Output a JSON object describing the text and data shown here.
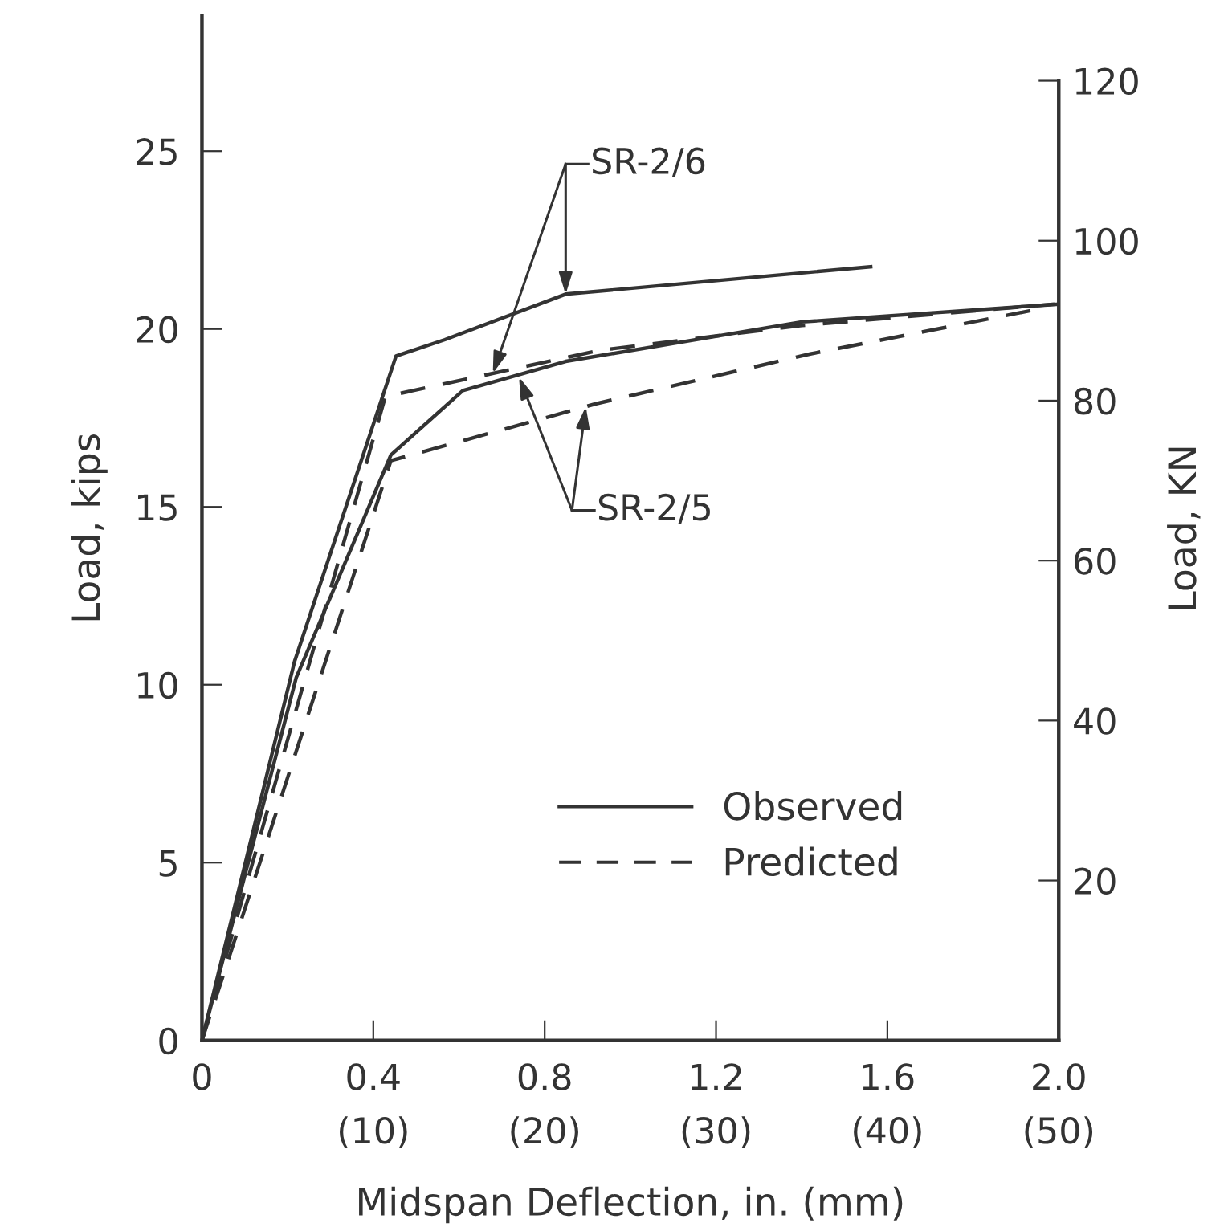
{
  "chart_data": {
    "type": "line",
    "xlabel": "Midspan Deflection, in. (mm)",
    "ylabel": "Load, kips",
    "y2label": "Load, KN",
    "xlim": [
      0,
      2.0
    ],
    "xticks": [
      0,
      0.4,
      0.8,
      1.2,
      1.6,
      {
        "value": 2.0,
        "label": "2.0"
      }
    ],
    "x2lim": [
      0,
      50
    ],
    "x2ticks": [
      {
        "value": 10,
        "label": "(10)"
      },
      {
        "value": 20,
        "label": "(20)"
      },
      {
        "value": 30,
        "label": "(30)"
      },
      {
        "value": 40,
        "label": "(40)"
      },
      {
        "value": 50,
        "label": "(50)"
      }
    ],
    "ylim": [
      0,
      28.8
    ],
    "yticks": [
      0,
      5,
      10,
      15,
      20,
      25
    ],
    "y2lim": [
      0,
      128.1
    ],
    "y2ticks": [
      20,
      40,
      60,
      80,
      100,
      120
    ],
    "series": [
      {
        "name": "Observed",
        "color": "#333333",
        "line_style": "solid",
        "x": [
          0,
          0.216,
          0.453,
          0.567,
          0.849,
          1.561
        ],
        "values": [
          0,
          10.65,
          19.24,
          19.7,
          20.98,
          21.75
        ]
      },
      {
        "name": "Predicted",
        "color": "#333333",
        "line_style": "dashed",
        "x": [
          0,
          0.428,
          0.928,
          1.4,
          1.99
        ],
        "values": [
          0,
          18.1,
          19.4,
          20.1,
          20.7
        ]
      },
      {
        "color": "#333333",
        "line_style": "solid",
        "x": [
          0,
          0.22,
          0.441,
          0.609,
          0.849,
          1.4,
          2.0
        ],
        "values": [
          0,
          10.2,
          16.46,
          18.27,
          19.09,
          20.2,
          20.7
        ]
      },
      {
        "color": "#333333",
        "line_style": "dashed",
        "x": [
          0,
          0.441,
          0.92,
          1.42,
          1.97
        ],
        "values": [
          0,
          16.3,
          17.9,
          19.3,
          20.6
        ]
      }
    ],
    "annotations": [
      {
        "text": "SR-2/6",
        "x": 0.849,
        "y": 20.98
      },
      {
        "text": "SR-2/5",
        "x": 0.74,
        "y": 18.65
      }
    ],
    "legend": "bottom right",
    "grid": false,
    "marker": "none"
  }
}
